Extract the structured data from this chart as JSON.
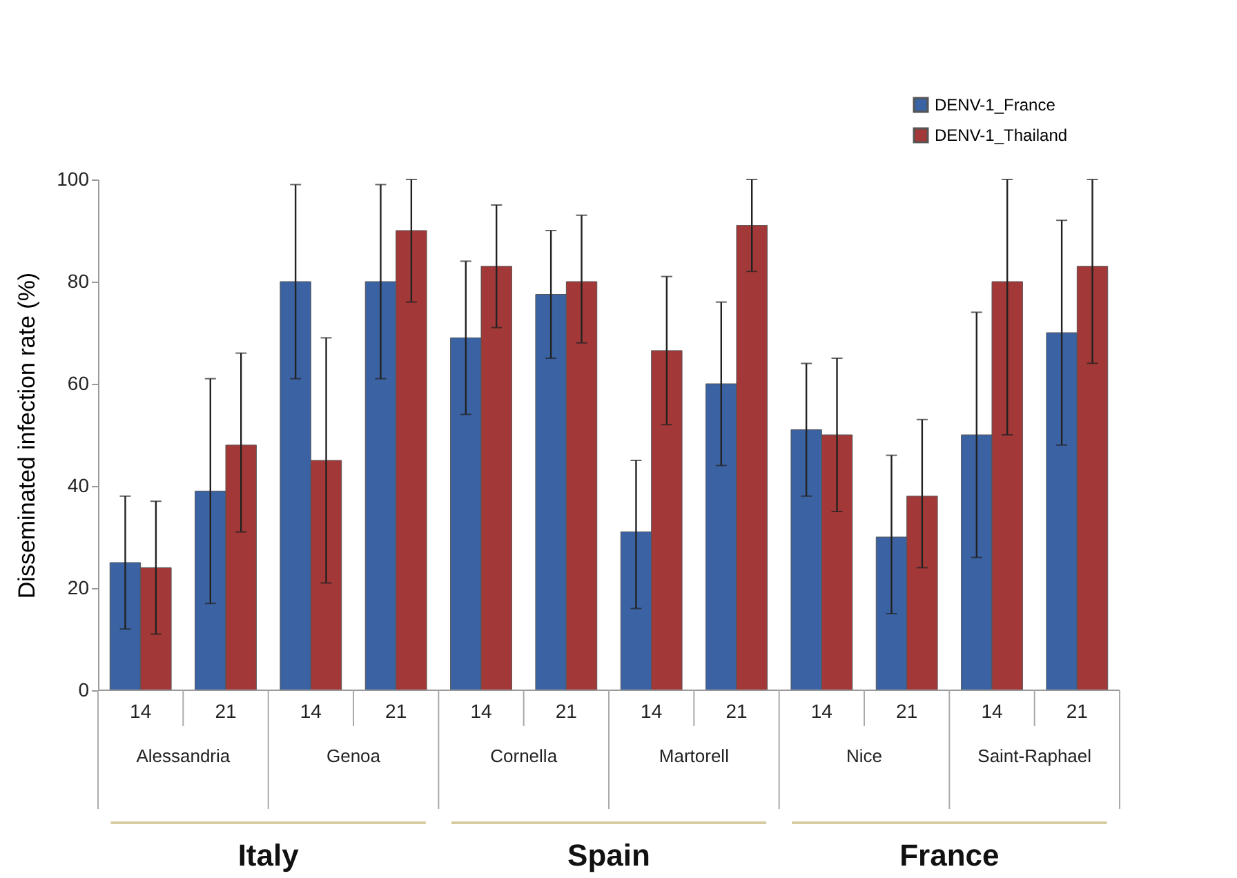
{
  "chart_data": {
    "type": "bar",
    "ylabel": "Disseminated infection rate (%)",
    "categories": [
      "14",
      "21",
      "14",
      "21",
      "14",
      "21",
      "14",
      "21",
      "14",
      "21",
      "14",
      "21"
    ],
    "series": [
      {
        "name": "DENV-1_France",
        "color": "#3b63a3",
        "values": [
          25,
          39,
          80,
          80,
          69,
          77.5,
          31,
          60,
          51,
          30,
          50,
          70
        ],
        "errors": [
          [
            12,
            38
          ],
          [
            17,
            61
          ],
          [
            61,
            99
          ],
          [
            61,
            99
          ],
          [
            54,
            84
          ],
          [
            65,
            90
          ],
          [
            16,
            45
          ],
          [
            44,
            76
          ],
          [
            38,
            64
          ],
          [
            15,
            46
          ],
          [
            26,
            74
          ],
          [
            48,
            92
          ]
        ]
      },
      {
        "name": "DENV-1_Thailand",
        "color": "#a33838",
        "values": [
          24,
          48,
          45,
          90,
          83,
          80,
          66.5,
          91,
          50,
          38,
          80,
          83
        ],
        "errors": [
          [
            11,
            37
          ],
          [
            31,
            66
          ],
          [
            21,
            69
          ],
          [
            76,
            100
          ],
          [
            71,
            95
          ],
          [
            68,
            93
          ],
          [
            52,
            81
          ],
          [
            82,
            100
          ],
          [
            35,
            65
          ],
          [
            24,
            53
          ],
          [
            50,
            100
          ],
          [
            64,
            100
          ]
        ]
      }
    ],
    "annotations": [
      "Alessandria",
      "Genoa",
      "Cornella",
      "Martorell",
      "Nice",
      "Saint-Raphael",
      "Italy",
      "Spain",
      "France"
    ],
    "ylim": [
      0,
      100
    ],
    "yticks": [
      0,
      20,
      40,
      60,
      80,
      100
    ],
    "grid": false,
    "legend": "top right"
  }
}
